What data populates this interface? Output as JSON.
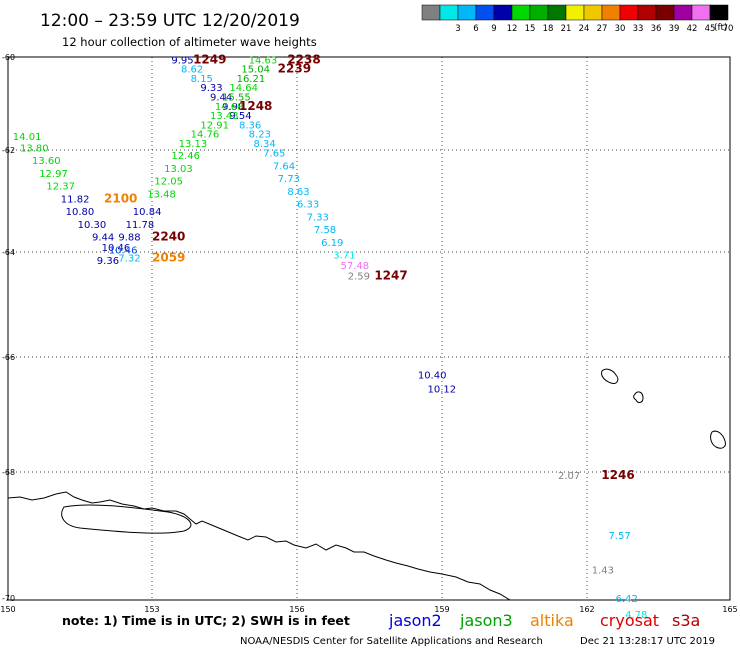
{
  "header": {
    "title": "12:00 – 23:59 UTC 12/20/2019",
    "subtitle": "12 hour collection of altimeter wave heights"
  },
  "legend": {
    "unit": "(ft)",
    "scale": [
      {
        "label": "",
        "color": "#808080"
      },
      {
        "label": "3",
        "color": "#00e8e8"
      },
      {
        "label": "6",
        "color": "#00b8f8"
      },
      {
        "label": "9",
        "color": "#0050f0"
      },
      {
        "label": "12",
        "color": "#0000a8"
      },
      {
        "label": "15",
        "color": "#00d800"
      },
      {
        "label": "18",
        "color": "#00b000"
      },
      {
        "label": "21",
        "color": "#007800"
      },
      {
        "label": "24",
        "color": "#f0f000"
      },
      {
        "label": "27",
        "color": "#f0c800"
      },
      {
        "label": "30",
        "color": "#f08000"
      },
      {
        "label": "33",
        "color": "#f00000"
      },
      {
        "label": "36",
        "color": "#b00000"
      },
      {
        "label": "39",
        "color": "#780000"
      },
      {
        "label": "42",
        "color": "#a000a0"
      },
      {
        "label": "45",
        "color": "#f070f0"
      },
      {
        "label": "70",
        "color": "#000000"
      }
    ]
  },
  "axes": {
    "lat_labels": [
      "-60",
      "-62",
      "-64",
      "-66",
      "-68",
      "-70"
    ],
    "lon_labels": [
      "150",
      "153",
      "156",
      "159",
      "162",
      "165"
    ]
  },
  "chart_data": {
    "type": "map",
    "grid": true,
    "lon_range": [
      150,
      165
    ],
    "lat_range": [
      -60,
      -70.1
    ],
    "observations": [
      {
        "v": "9.95",
        "lon": 153.4,
        "lat": -60.05,
        "c": "#0000a8"
      },
      {
        "v": "8.62",
        "lon": 153.6,
        "lat": -60.25,
        "c": "#00b8f8"
      },
      {
        "v": "8.15",
        "lon": 153.8,
        "lat": -60.45,
        "c": "#00b8f8"
      },
      {
        "v": "9.33",
        "lon": 154.0,
        "lat": -60.65,
        "c": "#0000a8"
      },
      {
        "v": "9.44",
        "lon": 154.2,
        "lat": -60.85,
        "c": "#0000a8"
      },
      {
        "v": "9.90",
        "lon": 154.45,
        "lat": -61.05,
        "c": "#0000a8"
      },
      {
        "v": "9.54",
        "lon": 154.6,
        "lat": -61.25,
        "c": "#0000a8"
      },
      {
        "v": "8.36",
        "lon": 154.8,
        "lat": -61.45,
        "c": "#00b8f8"
      },
      {
        "v": "8.23",
        "lon": 155.0,
        "lat": -61.65,
        "c": "#00b8f8"
      },
      {
        "v": "8.34",
        "lon": 155.1,
        "lat": -61.85,
        "c": "#00b8f8"
      },
      {
        "v": "7.65",
        "lon": 155.3,
        "lat": -62.05,
        "c": "#00b8f8"
      },
      {
        "v": "7.64",
        "lon": 155.5,
        "lat": -62.3,
        "c": "#00b8f8"
      },
      {
        "v": "7.73",
        "lon": 155.6,
        "lat": -62.55,
        "c": "#00b8f8"
      },
      {
        "v": "8.63",
        "lon": 155.8,
        "lat": -62.8,
        "c": "#00b8f8"
      },
      {
        "v": "6.33",
        "lon": 156.0,
        "lat": -63.05,
        "c": "#00b8f8"
      },
      {
        "v": "7.33",
        "lon": 156.2,
        "lat": -63.3,
        "c": "#00b8f8"
      },
      {
        "v": "7.58",
        "lon": 156.35,
        "lat": -63.55,
        "c": "#00b8f8"
      },
      {
        "v": "6.19",
        "lon": 156.5,
        "lat": -63.8,
        "c": "#00b8f8"
      },
      {
        "v": "3.71",
        "lon": 156.75,
        "lat": -64.05,
        "c": "#00e8e8"
      },
      {
        "v": "57.48",
        "lon": 156.9,
        "lat": -64.25,
        "c": "#f070f0"
      },
      {
        "v": "2.59",
        "lon": 157.05,
        "lat": -64.45,
        "c": "#808080"
      },
      {
        "v": "14.63",
        "lon": 155.0,
        "lat": -60.05,
        "c": "#00d800"
      },
      {
        "v": "15.04",
        "lon": 154.85,
        "lat": -60.25,
        "c": "#00b000"
      },
      {
        "v": "16.21",
        "lon": 154.75,
        "lat": -60.45,
        "c": "#00b000"
      },
      {
        "v": "14.64",
        "lon": 154.6,
        "lat": -60.65,
        "c": "#00d800"
      },
      {
        "v": "15.55",
        "lon": 154.45,
        "lat": -60.85,
        "c": "#00b000"
      },
      {
        "v": "14.68",
        "lon": 154.3,
        "lat": -61.05,
        "c": "#00d800"
      },
      {
        "v": "13.43",
        "lon": 154.2,
        "lat": -61.25,
        "c": "#00d800"
      },
      {
        "v": "12.91",
        "lon": 154.0,
        "lat": -61.45,
        "c": "#00d800"
      },
      {
        "v": "14.76",
        "lon": 153.8,
        "lat": -61.65,
        "c": "#00d800"
      },
      {
        "v": "13.13",
        "lon": 153.55,
        "lat": -61.85,
        "c": "#00d800"
      },
      {
        "v": "12.46",
        "lon": 153.4,
        "lat": -62.1,
        "c": "#00d800"
      },
      {
        "v": "13.03",
        "lon": 153.25,
        "lat": -62.35,
        "c": "#00d800"
      },
      {
        "v": "12.05",
        "lon": 153.05,
        "lat": -62.6,
        "c": "#00d800"
      },
      {
        "v": "13.48",
        "lon": 152.9,
        "lat": -62.85,
        "c": "#00d800"
      },
      {
        "v": "14.01",
        "lon": 150.1,
        "lat": -61.7,
        "c": "#00d800"
      },
      {
        "v": "13.80",
        "lon": 150.25,
        "lat": -61.95,
        "c": "#00d800"
      },
      {
        "v": "13.60",
        "lon": 150.5,
        "lat": -62.2,
        "c": "#00d800"
      },
      {
        "v": "12.97",
        "lon": 150.65,
        "lat": -62.45,
        "c": "#00d800"
      },
      {
        "v": "12.37",
        "lon": 150.8,
        "lat": -62.7,
        "c": "#00d800"
      },
      {
        "v": "11.82",
        "lon": 151.1,
        "lat": -62.95,
        "c": "#0000a8"
      },
      {
        "v": "10.80",
        "lon": 151.2,
        "lat": -63.2,
        "c": "#0000a8"
      },
      {
        "v": "10.30",
        "lon": 151.45,
        "lat": -63.45,
        "c": "#0000a8"
      },
      {
        "v": "9.44",
        "lon": 151.75,
        "lat": -63.7,
        "c": "#0000a8"
      },
      {
        "v": "10.46",
        "lon": 151.95,
        "lat": -63.9,
        "c": "#0000a8"
      },
      {
        "v": "9.36",
        "lon": 151.85,
        "lat": -64.15,
        "c": "#0000a8"
      },
      {
        "v": "10.84",
        "lon": 152.6,
        "lat": -63.2,
        "c": "#0000a8"
      },
      {
        "v": "11.78",
        "lon": 152.45,
        "lat": -63.45,
        "c": "#0000a8"
      },
      {
        "v": "9.88",
        "lon": 152.3,
        "lat": -63.7,
        "c": "#0000a8"
      },
      {
        "v": "10.46",
        "lon": 152.1,
        "lat": -63.95,
        "c": "#0050f0"
      },
      {
        "v": "7.32",
        "lon": 152.3,
        "lat": -64.1,
        "c": "#00b8f8"
      },
      {
        "v": "10.40",
        "lon": 158.5,
        "lat": -66.3,
        "c": "#0000a8"
      },
      {
        "v": "10.12",
        "lon": 158.7,
        "lat": -66.55,
        "c": "#0000a8"
      },
      {
        "v": "2.07",
        "lon": 161.4,
        "lat": -68.05,
        "c": "#808080"
      },
      {
        "v": "7.57",
        "lon": 162.45,
        "lat": -69.0,
        "c": "#00b8f8"
      },
      {
        "v": "1.43",
        "lon": 162.1,
        "lat": -69.55,
        "c": "#808080"
      },
      {
        "v": "6.42",
        "lon": 162.6,
        "lat": -70.0,
        "c": "#00b8f8"
      },
      {
        "v": "4.78",
        "lon": 162.8,
        "lat": -70.25,
        "c": "#00e8e8"
      }
    ],
    "time_labels": [
      {
        "t": "1249",
        "lon": 153.85,
        "lat": -60.05,
        "c": "#780000"
      },
      {
        "t": "2238",
        "lon": 155.8,
        "lat": -60.05,
        "c": "#780000"
      },
      {
        "t": "2239",
        "lon": 155.6,
        "lat": -60.25,
        "c": "#780000"
      },
      {
        "t": "1248",
        "lon": 154.8,
        "lat": -61.05,
        "c": "#780000"
      },
      {
        "t": "2100",
        "lon": 152.0,
        "lat": -62.95,
        "c": "#f08000"
      },
      {
        "t": "2240",
        "lon": 153.0,
        "lat": -63.7,
        "c": "#780000"
      },
      {
        "t": "2059",
        "lon": 153.0,
        "lat": -64.1,
        "c": "#f08000"
      },
      {
        "t": "1247",
        "lon": 157.6,
        "lat": -64.45,
        "c": "#780000"
      },
      {
        "t": "1246",
        "lon": 162.3,
        "lat": -68.05,
        "c": "#780000"
      }
    ]
  },
  "footer": {
    "note": "note: 1) Time is in UTC; 2) SWH is in feet",
    "satellites": [
      {
        "name": "jason2",
        "color": "#0000e0"
      },
      {
        "name": "jason3",
        "color": "#00a000"
      },
      {
        "name": "altika",
        "color": "#f08000"
      },
      {
        "name": "cryosat",
        "color": "#e00000"
      },
      {
        "name": "s3a",
        "color": "#b00000"
      }
    ],
    "credit": "NOAA/NESDIS Center for Satellite Applications and Research",
    "timestamp": "Dec 21 13:28:17 UTC 2019"
  }
}
